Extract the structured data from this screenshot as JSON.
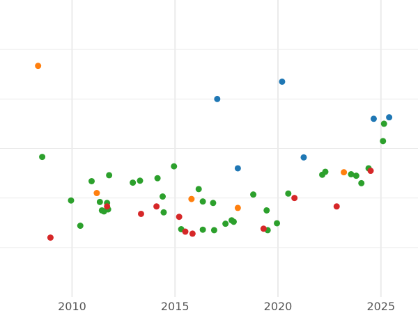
{
  "chart_data": {
    "type": "scatter",
    "title": "",
    "xlabel": "",
    "ylabel": "",
    "xlim": [
      2006.5,
      2026.8
    ],
    "ylim": [
      0,
      6
    ],
    "x_ticks": [
      2010,
      2015,
      2020,
      2025
    ],
    "x_tick_labels": [
      "2010",
      "2015",
      "2020",
      "2025"
    ],
    "y_gridlines": [
      1,
      2,
      3,
      4,
      5
    ],
    "grid": true,
    "legend": "none",
    "colors": {
      "blue": "#1f77b4",
      "orange": "#ff7f0e",
      "green": "#2ca02c",
      "red": "#d62728"
    },
    "series": [
      {
        "color": "#1f77b4",
        "points": [
          [
            2017.05,
            4.0
          ],
          [
            2018.05,
            2.6
          ],
          [
            2020.2,
            4.35
          ],
          [
            2021.25,
            2.82
          ],
          [
            2024.65,
            3.6
          ],
          [
            2025.4,
            3.63
          ]
        ]
      },
      {
        "color": "#ff7f0e",
        "points": [
          [
            2008.35,
            4.67
          ],
          [
            2011.2,
            2.1
          ],
          [
            2015.8,
            1.98
          ],
          [
            2018.05,
            1.8
          ],
          [
            2023.2,
            2.52
          ]
        ]
      },
      {
        "color": "#2ca02c",
        "points": [
          [
            2008.55,
            2.83
          ],
          [
            2009.95,
            1.95
          ],
          [
            2010.4,
            1.44
          ],
          [
            2010.95,
            2.34
          ],
          [
            2011.35,
            1.92
          ],
          [
            2011.45,
            1.75
          ],
          [
            2011.55,
            1.73
          ],
          [
            2011.7,
            1.9
          ],
          [
            2011.75,
            1.77
          ],
          [
            2011.8,
            2.46
          ],
          [
            2012.95,
            2.31
          ],
          [
            2013.3,
            2.35
          ],
          [
            2014.15,
            2.4
          ],
          [
            2014.4,
            2.03
          ],
          [
            2014.45,
            1.71
          ],
          [
            2014.95,
            2.64
          ],
          [
            2015.3,
            1.37
          ],
          [
            2016.15,
            2.18
          ],
          [
            2016.35,
            1.93
          ],
          [
            2016.35,
            1.36
          ],
          [
            2016.85,
            1.9
          ],
          [
            2016.9,
            1.35
          ],
          [
            2017.45,
            1.48
          ],
          [
            2017.75,
            1.55
          ],
          [
            2017.85,
            1.52
          ],
          [
            2018.8,
            2.07
          ],
          [
            2019.45,
            1.75
          ],
          [
            2019.5,
            1.35
          ],
          [
            2019.95,
            1.49
          ],
          [
            2020.5,
            2.09
          ],
          [
            2022.15,
            2.47
          ],
          [
            2022.3,
            2.53
          ],
          [
            2023.55,
            2.48
          ],
          [
            2023.8,
            2.45
          ],
          [
            2024.05,
            2.3
          ],
          [
            2024.4,
            2.6
          ],
          [
            2025.1,
            3.15
          ],
          [
            2025.15,
            3.5
          ]
        ]
      },
      {
        "color": "#d62728",
        "points": [
          [
            2008.95,
            1.2
          ],
          [
            2011.7,
            1.83
          ],
          [
            2013.35,
            1.68
          ],
          [
            2014.1,
            1.83
          ],
          [
            2015.2,
            1.62
          ],
          [
            2015.5,
            1.32
          ],
          [
            2015.85,
            1.28
          ],
          [
            2019.3,
            1.38
          ],
          [
            2020.8,
            2.0
          ],
          [
            2022.85,
            1.83
          ],
          [
            2024.5,
            2.55
          ]
        ]
      }
    ]
  }
}
